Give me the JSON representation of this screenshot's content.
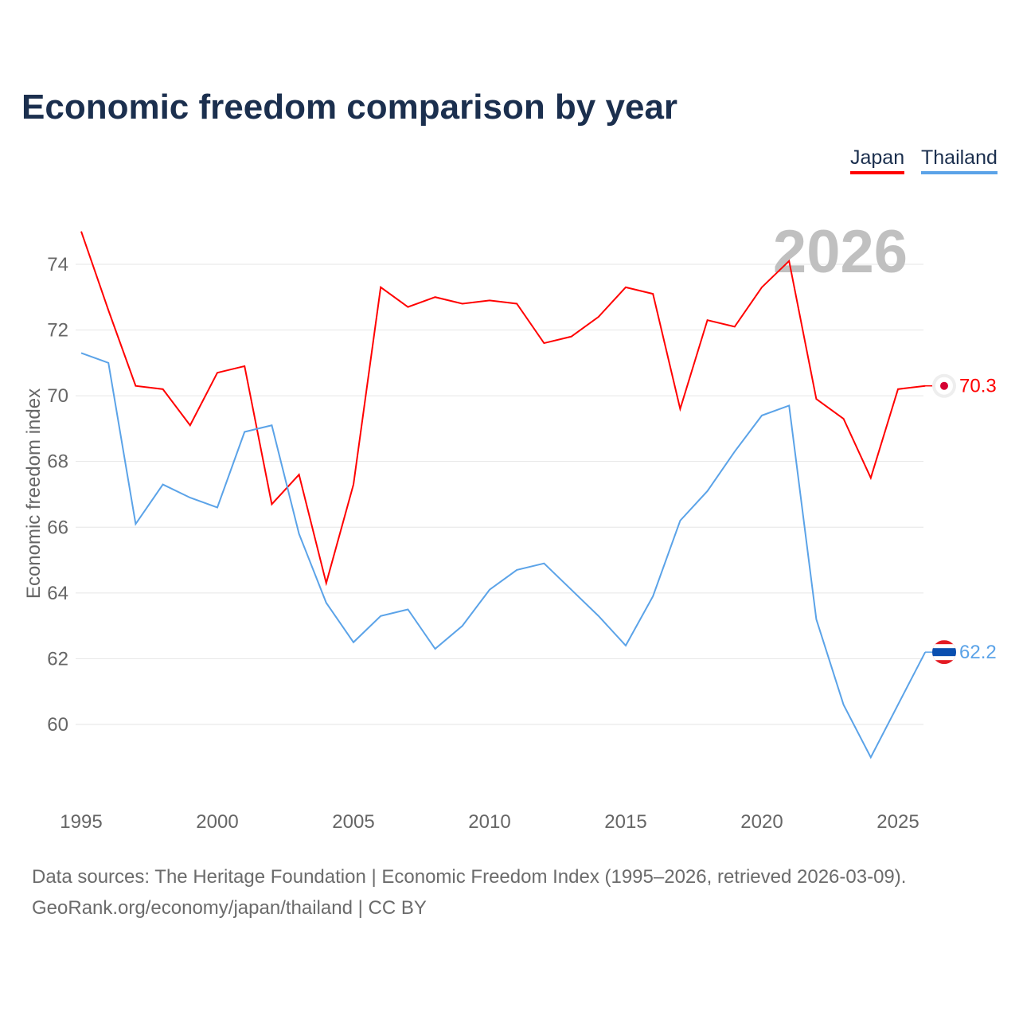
{
  "title": "Economic freedom comparison by year",
  "legend": [
    {
      "label": "Japan",
      "color": "#ff0000"
    },
    {
      "label": "Thailand",
      "color": "#5ba3e8"
    }
  ],
  "watermark_year": "2026",
  "footer": {
    "line1": "Data sources: The Heritage Foundation | Economic Freedom Index (1995–2026, retrieved 2026-03-09).",
    "line2": "GeoRank.org/economy/japan/thailand | CC BY"
  },
  "chart_data": {
    "type": "line",
    "title": "Economic freedom comparison by year",
    "xlabel": "",
    "ylabel": "Economic freedom index",
    "xlim": [
      1995,
      2026
    ],
    "ylim": [
      57.5,
      75.5
    ],
    "xticks": [
      1995,
      2000,
      2005,
      2010,
      2015,
      2020,
      2025
    ],
    "yticks": [
      60,
      62,
      64,
      66,
      68,
      70,
      72,
      74
    ],
    "grid": true,
    "legend_position": "top-right",
    "x": [
      1995,
      1996,
      1997,
      1998,
      1999,
      2000,
      2001,
      2002,
      2003,
      2004,
      2005,
      2006,
      2007,
      2008,
      2009,
      2010,
      2011,
      2012,
      2013,
      2014,
      2015,
      2016,
      2017,
      2018,
      2019,
      2020,
      2021,
      2022,
      2023,
      2024,
      2025,
      2026
    ],
    "series": [
      {
        "name": "Japan",
        "color": "#ff0000",
        "end_label": "70.3",
        "values": [
          75.0,
          72.6,
          70.3,
          70.2,
          69.1,
          70.7,
          70.9,
          66.7,
          67.6,
          64.3,
          67.3,
          73.3,
          72.7,
          73.0,
          72.8,
          72.9,
          72.8,
          71.6,
          71.8,
          72.4,
          73.3,
          73.1,
          69.6,
          72.3,
          72.1,
          73.3,
          74.1,
          69.9,
          69.3,
          67.5,
          70.2,
          70.3
        ]
      },
      {
        "name": "Thailand",
        "color": "#5ba3e8",
        "end_label": "62.2",
        "values": [
          71.3,
          71.0,
          66.1,
          67.3,
          66.9,
          66.6,
          68.9,
          69.1,
          65.8,
          63.7,
          62.5,
          63.3,
          63.5,
          62.3,
          63.0,
          64.1,
          64.7,
          64.9,
          64.1,
          63.3,
          62.4,
          63.9,
          66.2,
          67.1,
          68.3,
          69.4,
          69.7,
          63.2,
          60.6,
          59.0,
          60.6,
          62.2
        ]
      }
    ]
  }
}
